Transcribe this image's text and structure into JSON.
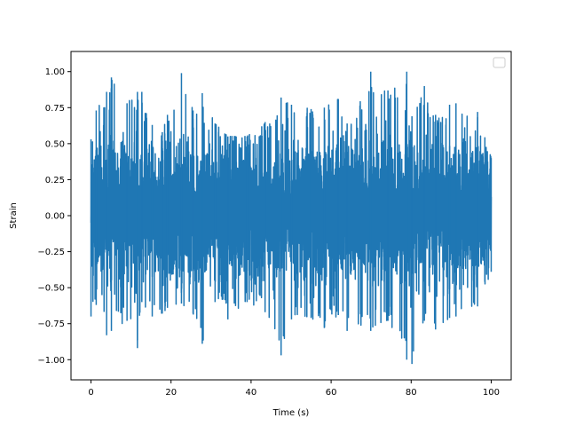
{
  "chart_data": {
    "type": "line",
    "title": "",
    "xlabel": "Time (s)",
    "ylabel": "Strain",
    "xlim": [
      -5,
      105
    ],
    "ylim": [
      -1.14,
      1.14
    ],
    "x_ticks": [
      0,
      20,
      40,
      60,
      80,
      100
    ],
    "x_tick_labels": [
      "0",
      "20",
      "40",
      "60",
      "80",
      "100"
    ],
    "y_ticks": [
      -1.0,
      -0.75,
      -0.5,
      -0.25,
      0.0,
      0.25,
      0.5,
      0.75,
      1.0
    ],
    "y_tick_labels": [
      "−1.00",
      "−0.75",
      "−0.50",
      "−0.25",
      "0.00",
      "0.25",
      "0.50",
      "0.75",
      "1.00"
    ],
    "grid": false,
    "legend": {
      "placement": "top-right",
      "entries": []
    },
    "series": [
      {
        "color": "#1f77b4",
        "x_start": 0,
        "x_end": 100,
        "typical_range": [
          -0.5,
          0.55
        ],
        "envelope_samples": [
          {
            "x": 0.0,
            "min": -0.7,
            "max": 0.53
          },
          {
            "x": 1.3,
            "min": -0.62,
            "max": 0.73
          },
          {
            "x": 3.9,
            "min": -0.83,
            "max": 0.86
          },
          {
            "x": 5.1,
            "min": -0.8,
            "max": 0.96
          },
          {
            "x": 9.0,
            "min": -0.73,
            "max": 0.78
          },
          {
            "x": 11.6,
            "min": -0.92,
            "max": 0.86
          },
          {
            "x": 12.7,
            "min": -0.6,
            "max": 0.86
          },
          {
            "x": 15.3,
            "min": -0.7,
            "max": 0.63
          },
          {
            "x": 17.8,
            "min": -0.68,
            "max": 0.58
          },
          {
            "x": 19.1,
            "min": -0.64,
            "max": 0.7
          },
          {
            "x": 22.6,
            "min": -0.61,
            "max": 0.99
          },
          {
            "x": 25.5,
            "min": -0.68,
            "max": 0.73
          },
          {
            "x": 27.8,
            "min": -0.89,
            "max": 0.85
          },
          {
            "x": 31.0,
            "min": -0.6,
            "max": 0.64
          },
          {
            "x": 34.2,
            "min": -0.72,
            "max": 0.55
          },
          {
            "x": 39.0,
            "min": -0.6,
            "max": 0.55
          },
          {
            "x": 43.5,
            "min": -0.67,
            "max": 0.65
          },
          {
            "x": 47.5,
            "min": -0.97,
            "max": 0.82
          },
          {
            "x": 50.1,
            "min": -0.72,
            "max": 0.77
          },
          {
            "x": 55.0,
            "min": -0.71,
            "max": 0.74
          },
          {
            "x": 58.3,
            "min": -0.78,
            "max": 0.75
          },
          {
            "x": 61.8,
            "min": -0.69,
            "max": 0.81
          },
          {
            "x": 64.0,
            "min": -0.8,
            "max": 0.64
          },
          {
            "x": 69.9,
            "min": -0.8,
            "max": 1.0
          },
          {
            "x": 74.2,
            "min": -0.73,
            "max": 0.87
          },
          {
            "x": 78.9,
            "min": -1.0,
            "max": 1.0
          },
          {
            "x": 80.2,
            "min": -1.03,
            "max": 0.69
          },
          {
            "x": 83.3,
            "min": -0.73,
            "max": 0.9
          },
          {
            "x": 86.1,
            "min": -0.79,
            "max": 0.7
          },
          {
            "x": 89.6,
            "min": -0.71,
            "max": 0.77
          },
          {
            "x": 91.2,
            "min": -0.7,
            "max": 0.78
          },
          {
            "x": 96.6,
            "min": -0.63,
            "max": 0.72
          },
          {
            "x": 100.0,
            "min": -0.39,
            "max": 0.4
          }
        ]
      }
    ]
  }
}
